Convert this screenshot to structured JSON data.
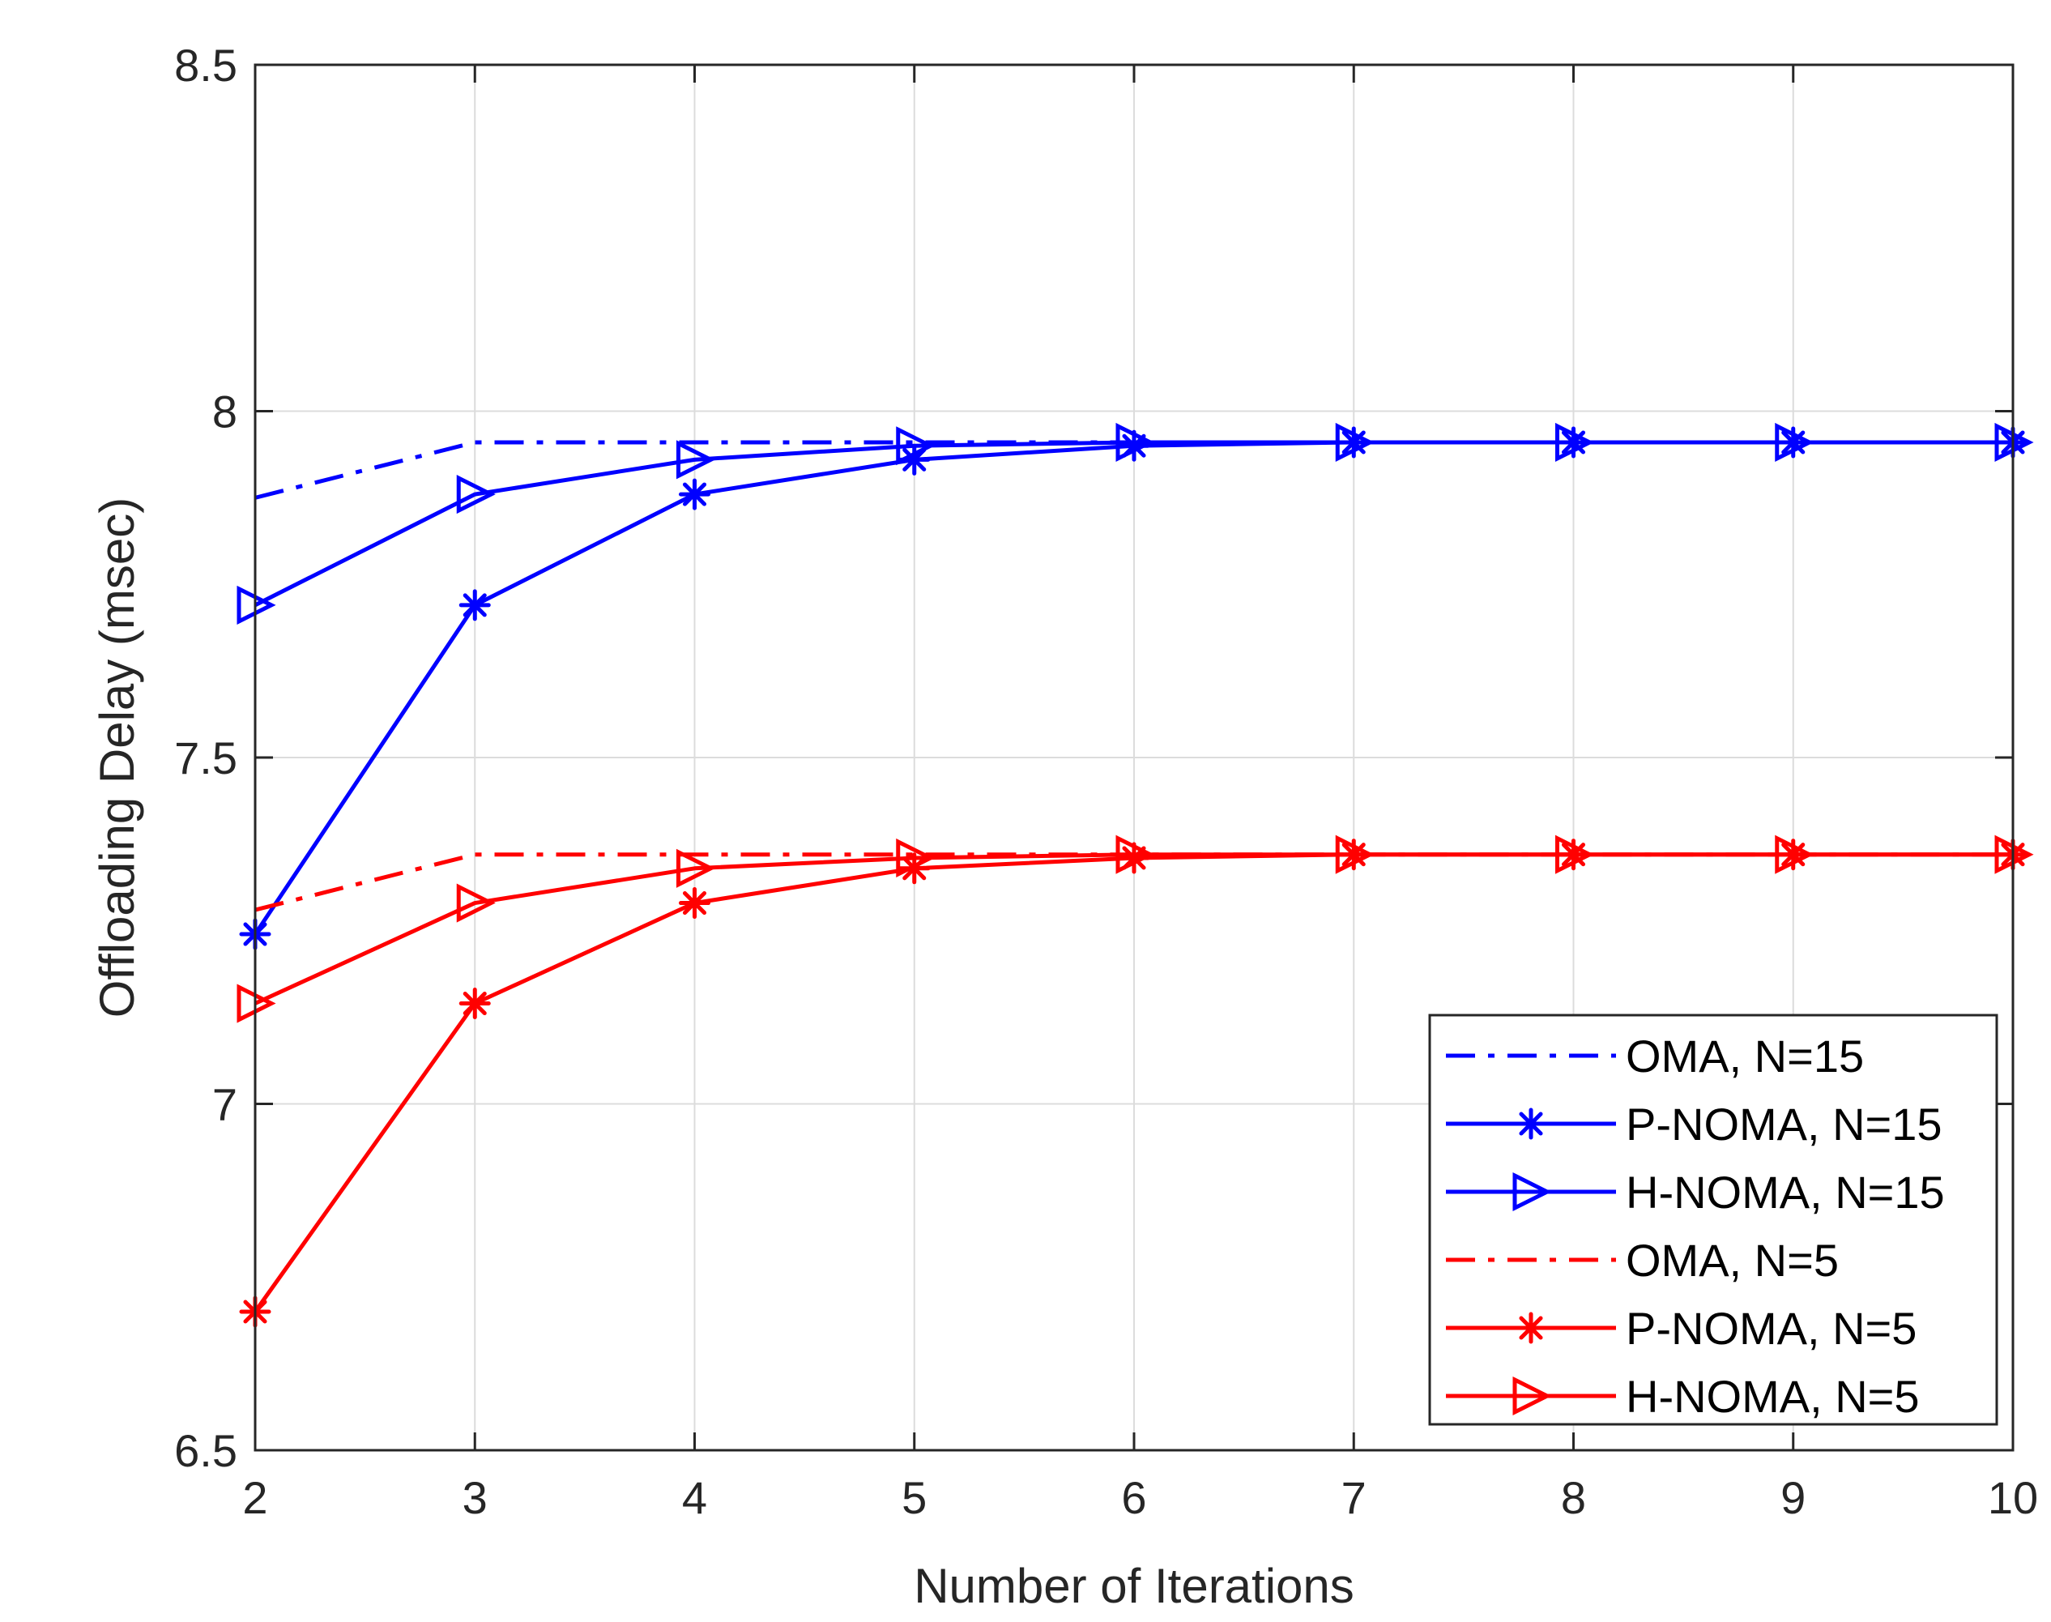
{
  "chart_data": {
    "type": "line",
    "title": "",
    "xlabel": "Number of Iterations",
    "ylabel": "Offloading Delay (msec)",
    "xlim": [
      2,
      10
    ],
    "ylim": [
      6.5,
      8.5
    ],
    "xticks": [
      2,
      3,
      4,
      5,
      6,
      7,
      8,
      9,
      10
    ],
    "yticks": [
      6.5,
      7,
      7.5,
      8,
      8.5
    ],
    "xtick_labels": [
      "2",
      "3",
      "4",
      "5",
      "6",
      "7",
      "8",
      "9",
      "10"
    ],
    "ytick_labels": [
      "6.5",
      "7",
      "7.5",
      "8",
      "8.5"
    ],
    "grid": true,
    "legend_position": "bottom-right",
    "x": [
      2,
      3,
      4,
      5,
      6,
      7,
      8,
      9,
      10
    ],
    "series": [
      {
        "name": "OMA, N=15",
        "color": "#0000ff",
        "dash": "dashdot",
        "marker": "none",
        "values": [
          7.875,
          7.955,
          7.955,
          7.955,
          7.955,
          7.955,
          7.955,
          7.955,
          7.955
        ]
      },
      {
        "name": "P-NOMA, N=15",
        "color": "#0000ff",
        "dash": "solid",
        "marker": "asterisk",
        "values": [
          7.245,
          7.72,
          7.88,
          7.93,
          7.95,
          7.955,
          7.955,
          7.955,
          7.955
        ]
      },
      {
        "name": "H-NOMA, N=15",
        "color": "#0000ff",
        "dash": "solid",
        "marker": "triangle-right",
        "values": [
          7.72,
          7.88,
          7.93,
          7.95,
          7.955,
          7.955,
          7.955,
          7.955,
          7.955
        ]
      },
      {
        "name": "OMA, N=5",
        "color": "#ff0000",
        "dash": "dashdot",
        "marker": "none",
        "values": [
          7.28,
          7.36,
          7.36,
          7.36,
          7.36,
          7.36,
          7.36,
          7.36,
          7.36
        ]
      },
      {
        "name": "P-NOMA, N=5",
        "color": "#ff0000",
        "dash": "solid",
        "marker": "asterisk",
        "values": [
          6.7,
          7.145,
          7.29,
          7.34,
          7.355,
          7.36,
          7.36,
          7.36,
          7.36
        ]
      },
      {
        "name": "H-NOMA, N=5",
        "color": "#ff0000",
        "dash": "solid",
        "marker": "triangle-right",
        "values": [
          7.145,
          7.29,
          7.34,
          7.355,
          7.36,
          7.36,
          7.36,
          7.36,
          7.36
        ]
      }
    ]
  }
}
